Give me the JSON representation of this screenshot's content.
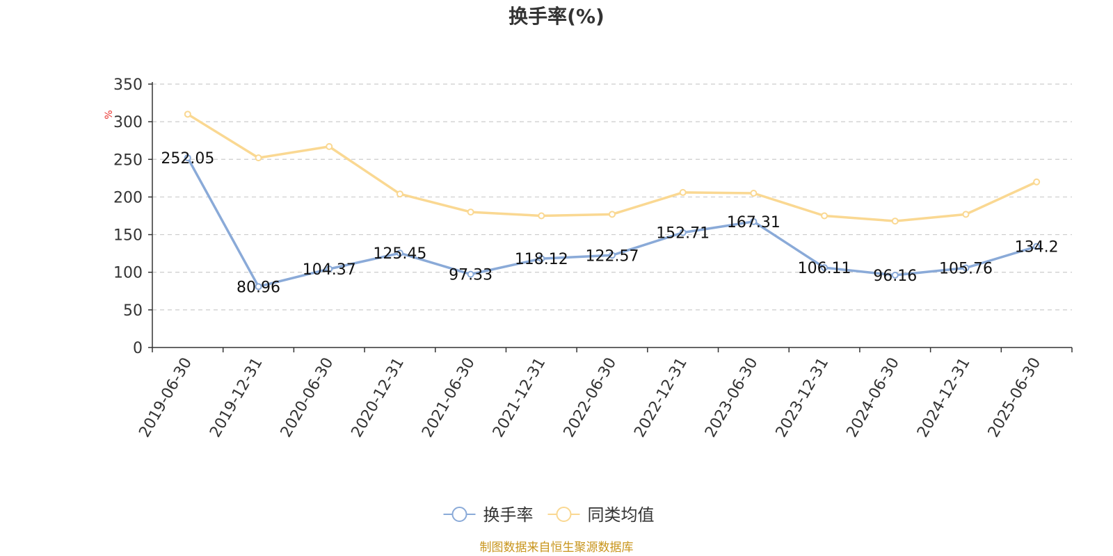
{
  "chart_data": {
    "type": "line",
    "title": "换手率(%)",
    "ylabel": "%",
    "xlabel": "",
    "ylim": [
      0,
      350
    ],
    "yticks": [
      0,
      50,
      100,
      150,
      200,
      250,
      300,
      350
    ],
    "grid": true,
    "legend_position": "bottom",
    "categories": [
      "2019-06-30",
      "2019-12-31",
      "2020-06-30",
      "2020-12-31",
      "2021-06-30",
      "2021-12-31",
      "2022-06-30",
      "2022-12-31",
      "2023-06-30",
      "2023-12-31",
      "2024-06-30",
      "2024-12-31",
      "2025-06-30"
    ],
    "series": [
      {
        "name": "换手率",
        "color": "#8aaad8",
        "show_labels": true,
        "values": [
          252.05,
          80.96,
          104.37,
          125.45,
          97.33,
          118.12,
          122.57,
          152.71,
          167.31,
          106.11,
          96.16,
          105.76,
          134.2
        ],
        "labels": [
          "252.05",
          "80.96",
          "104.37",
          "125.45",
          "97.33",
          "118.12",
          "122.57",
          "152.71",
          "167.31",
          "106.11",
          "96.16",
          "105.76",
          "134.2"
        ]
      },
      {
        "name": "同类均值",
        "color": "#fad892",
        "show_labels": false,
        "values": [
          310,
          252,
          267,
          204,
          180,
          175,
          177,
          206,
          205,
          175,
          168,
          177,
          220
        ]
      }
    ]
  },
  "source": "制图数据来自恒生聚源数据库"
}
